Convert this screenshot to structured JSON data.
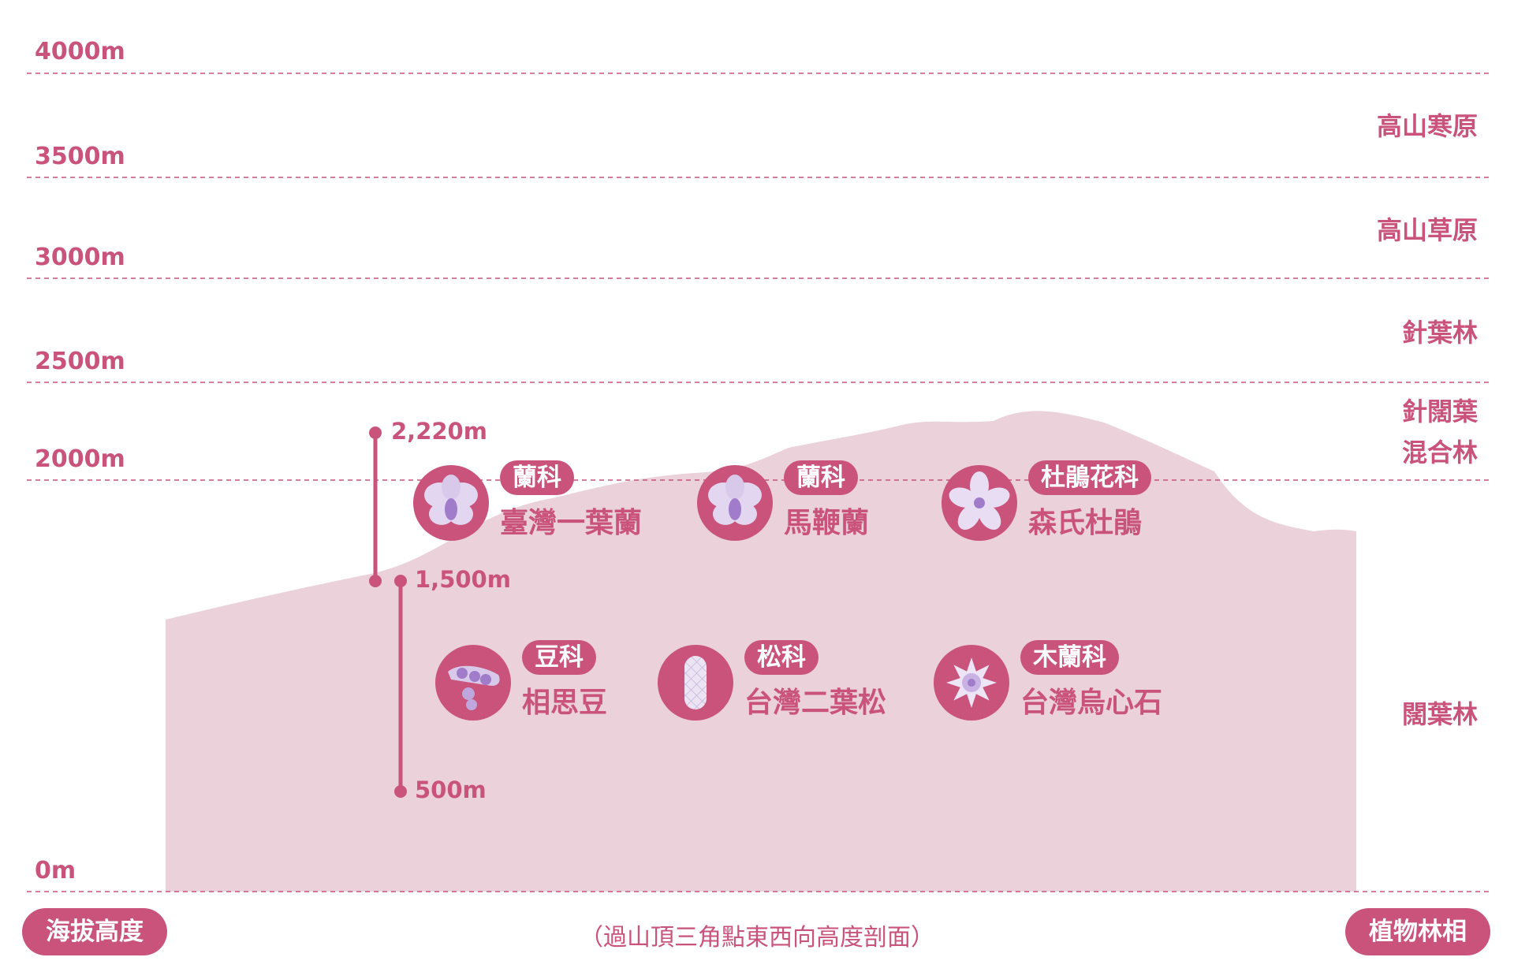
{
  "altitude_labels": [
    "4000m",
    "3500m",
    "3000m",
    "2500m",
    "2000m",
    "0m"
  ],
  "vegetation_zones": [
    {
      "id": "alpine-tundra",
      "label": "高山寒原"
    },
    {
      "id": "alpine-meadow",
      "label": "高山草原"
    },
    {
      "id": "coniferous",
      "label": "針葉林"
    },
    {
      "id": "mixed-1",
      "label": "針闊葉"
    },
    {
      "id": "mixed-2",
      "label": "混合林"
    },
    {
      "id": "broadleaf",
      "label": "闊葉林"
    }
  ],
  "ranges": {
    "upper": {
      "top": "2,220m",
      "bottom": "1,500m"
    },
    "lower": {
      "top": "1,500m",
      "bottom": "500m"
    }
  },
  "plants": [
    {
      "family": "蘭科",
      "species": "臺灣一葉蘭",
      "icon": "orchid-icon"
    },
    {
      "family": "蘭科",
      "species": "馬鞭蘭",
      "icon": "orchid-icon"
    },
    {
      "family": "杜鵑花科",
      "species": "森氏杜鵑",
      "icon": "rhododendron-icon"
    },
    {
      "family": "豆科",
      "species": "相思豆",
      "icon": "bean-pod-icon"
    },
    {
      "family": "松科",
      "species": "台灣二葉松",
      "icon": "pine-cone-icon"
    },
    {
      "family": "木蘭科",
      "species": "台灣烏心石",
      "icon": "magnolia-icon"
    }
  ],
  "footer": {
    "left_pill": "海拔高度",
    "caption": "（過山頂三角點東西向高度剖面）",
    "right_pill": "植物林相"
  },
  "colors": {
    "accent": "#c9537a",
    "mountain_fill": "#ebd1d9",
    "icon_petal": "#d8c9ea",
    "icon_center": "#a07ccb"
  }
}
